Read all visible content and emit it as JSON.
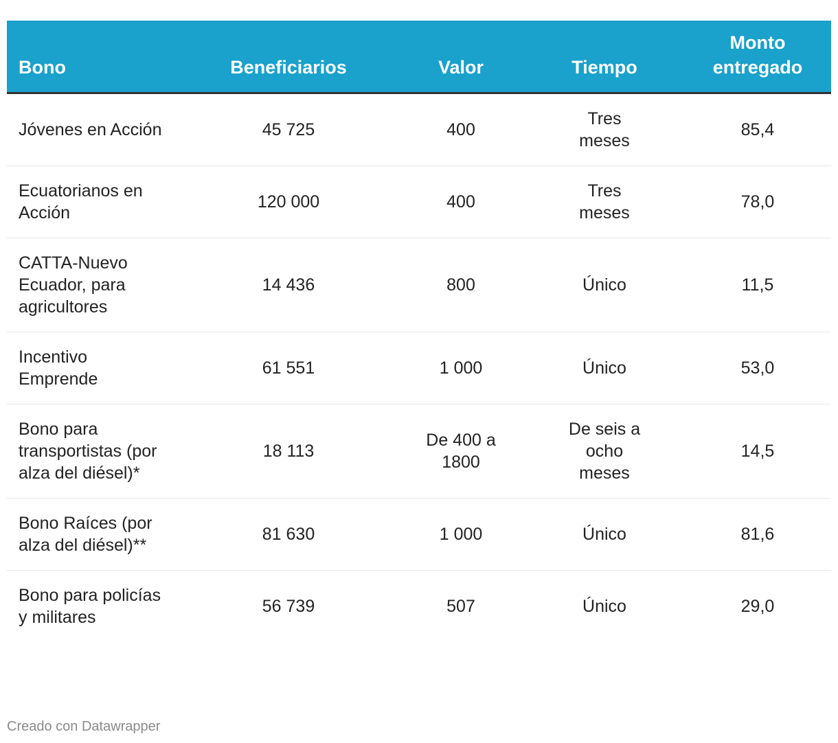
{
  "table": {
    "header": [
      "Bono",
      "Beneficiarios",
      "Valor",
      "Tiempo",
      "Monto entregado"
    ],
    "rows": [
      [
        "Jóvenes en Acción",
        "45 725",
        "400",
        "Tres meses",
        "85,4"
      ],
      [
        "Ecuatorianos en Acción",
        "120 000",
        "400",
        "Tres meses",
        "78,0"
      ],
      [
        "CATTA-Nuevo Ecuador, para agricultores",
        "14 436",
        "800",
        "Único",
        "11,5"
      ],
      [
        "Incentivo Emprende",
        "61 551",
        "1 000",
        "Único",
        "53,0"
      ],
      [
        "Bono para transportistas (por alza del diésel)*",
        "18 113",
        "De 400 a 1800",
        "De seis a ocho meses",
        "14,5"
      ],
      [
        "Bono Raíces (por alza del diésel)**",
        "81 630",
        "1 000",
        "Único",
        "81,6"
      ],
      [
        "Bono para policías y militares",
        "56 739",
        "507",
        "Único",
        "29,0"
      ]
    ]
  },
  "footer": {
    "note": "Creado con Datawrapper"
  }
}
